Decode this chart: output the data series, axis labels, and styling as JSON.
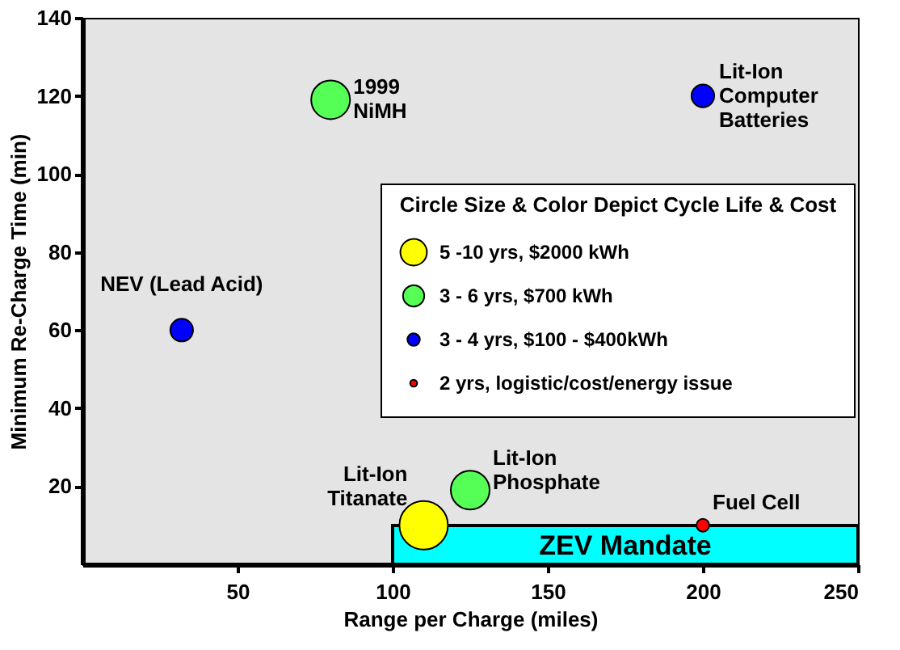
{
  "chart_data": {
    "type": "bubble",
    "xlabel": "Range per Charge (miles)",
    "ylabel": "Minimum Re-Charge Time (min)",
    "legend_title": "Circle Size & Color Depict Cycle Life & Cost",
    "series": [
      {
        "name": "5 -10 yrs, $2000 kWh",
        "color": "#ffff00",
        "x": [
          110
        ],
        "values": [
          10
        ],
        "sizes": [
          1
        ]
      },
      {
        "name": "3 - 6 yrs, $700 kWh",
        "color": "#55ff55",
        "x": [
          80,
          125
        ],
        "values": [
          119,
          19
        ],
        "sizes": [
          0.64,
          0.64
        ]
      },
      {
        "name": "3 - 4 yrs, $100 - $400kWh",
        "color": "#0000ff",
        "x": [
          32,
          200
        ],
        "values": [
          60,
          120
        ],
        "sizes": [
          0.22,
          0.22
        ]
      },
      {
        "name": "2 yrs, logistic/cost/energy issue",
        "color": "#ff0000",
        "x": [
          200
        ],
        "values": [
          10
        ],
        "sizes": [
          0.07
        ]
      }
    ],
    "annotations": [
      {
        "text": "1999\nNiMH",
        "x": 80,
        "y": 119
      },
      {
        "text": "Lit-Ion\nComputer\nBatteries",
        "x": 200,
        "y": 120
      },
      {
        "text": "NEV (Lead Acid)",
        "x": 32,
        "y": 60
      },
      {
        "text": "Lit-Ion\nTitanate",
        "x": 110,
        "y": 10
      },
      {
        "text": "Lit-Ion\nPhosphate",
        "x": 125,
        "y": 19
      },
      {
        "text": "Fuel Cell",
        "x": 200,
        "y": 10
      }
    ],
    "bands": [
      {
        "axis": "x",
        "from": 100,
        "to": 250,
        "label": "ZEV Mandate",
        "color": "#00ffff"
      }
    ],
    "xlim": [
      0,
      250
    ],
    "xticks": [
      50,
      100,
      150,
      200,
      250
    ],
    "ylim": [
      0,
      140
    ],
    "yticks": [
      20,
      40,
      60,
      80,
      100,
      120,
      140
    ],
    "grid": false,
    "legend": "right"
  }
}
